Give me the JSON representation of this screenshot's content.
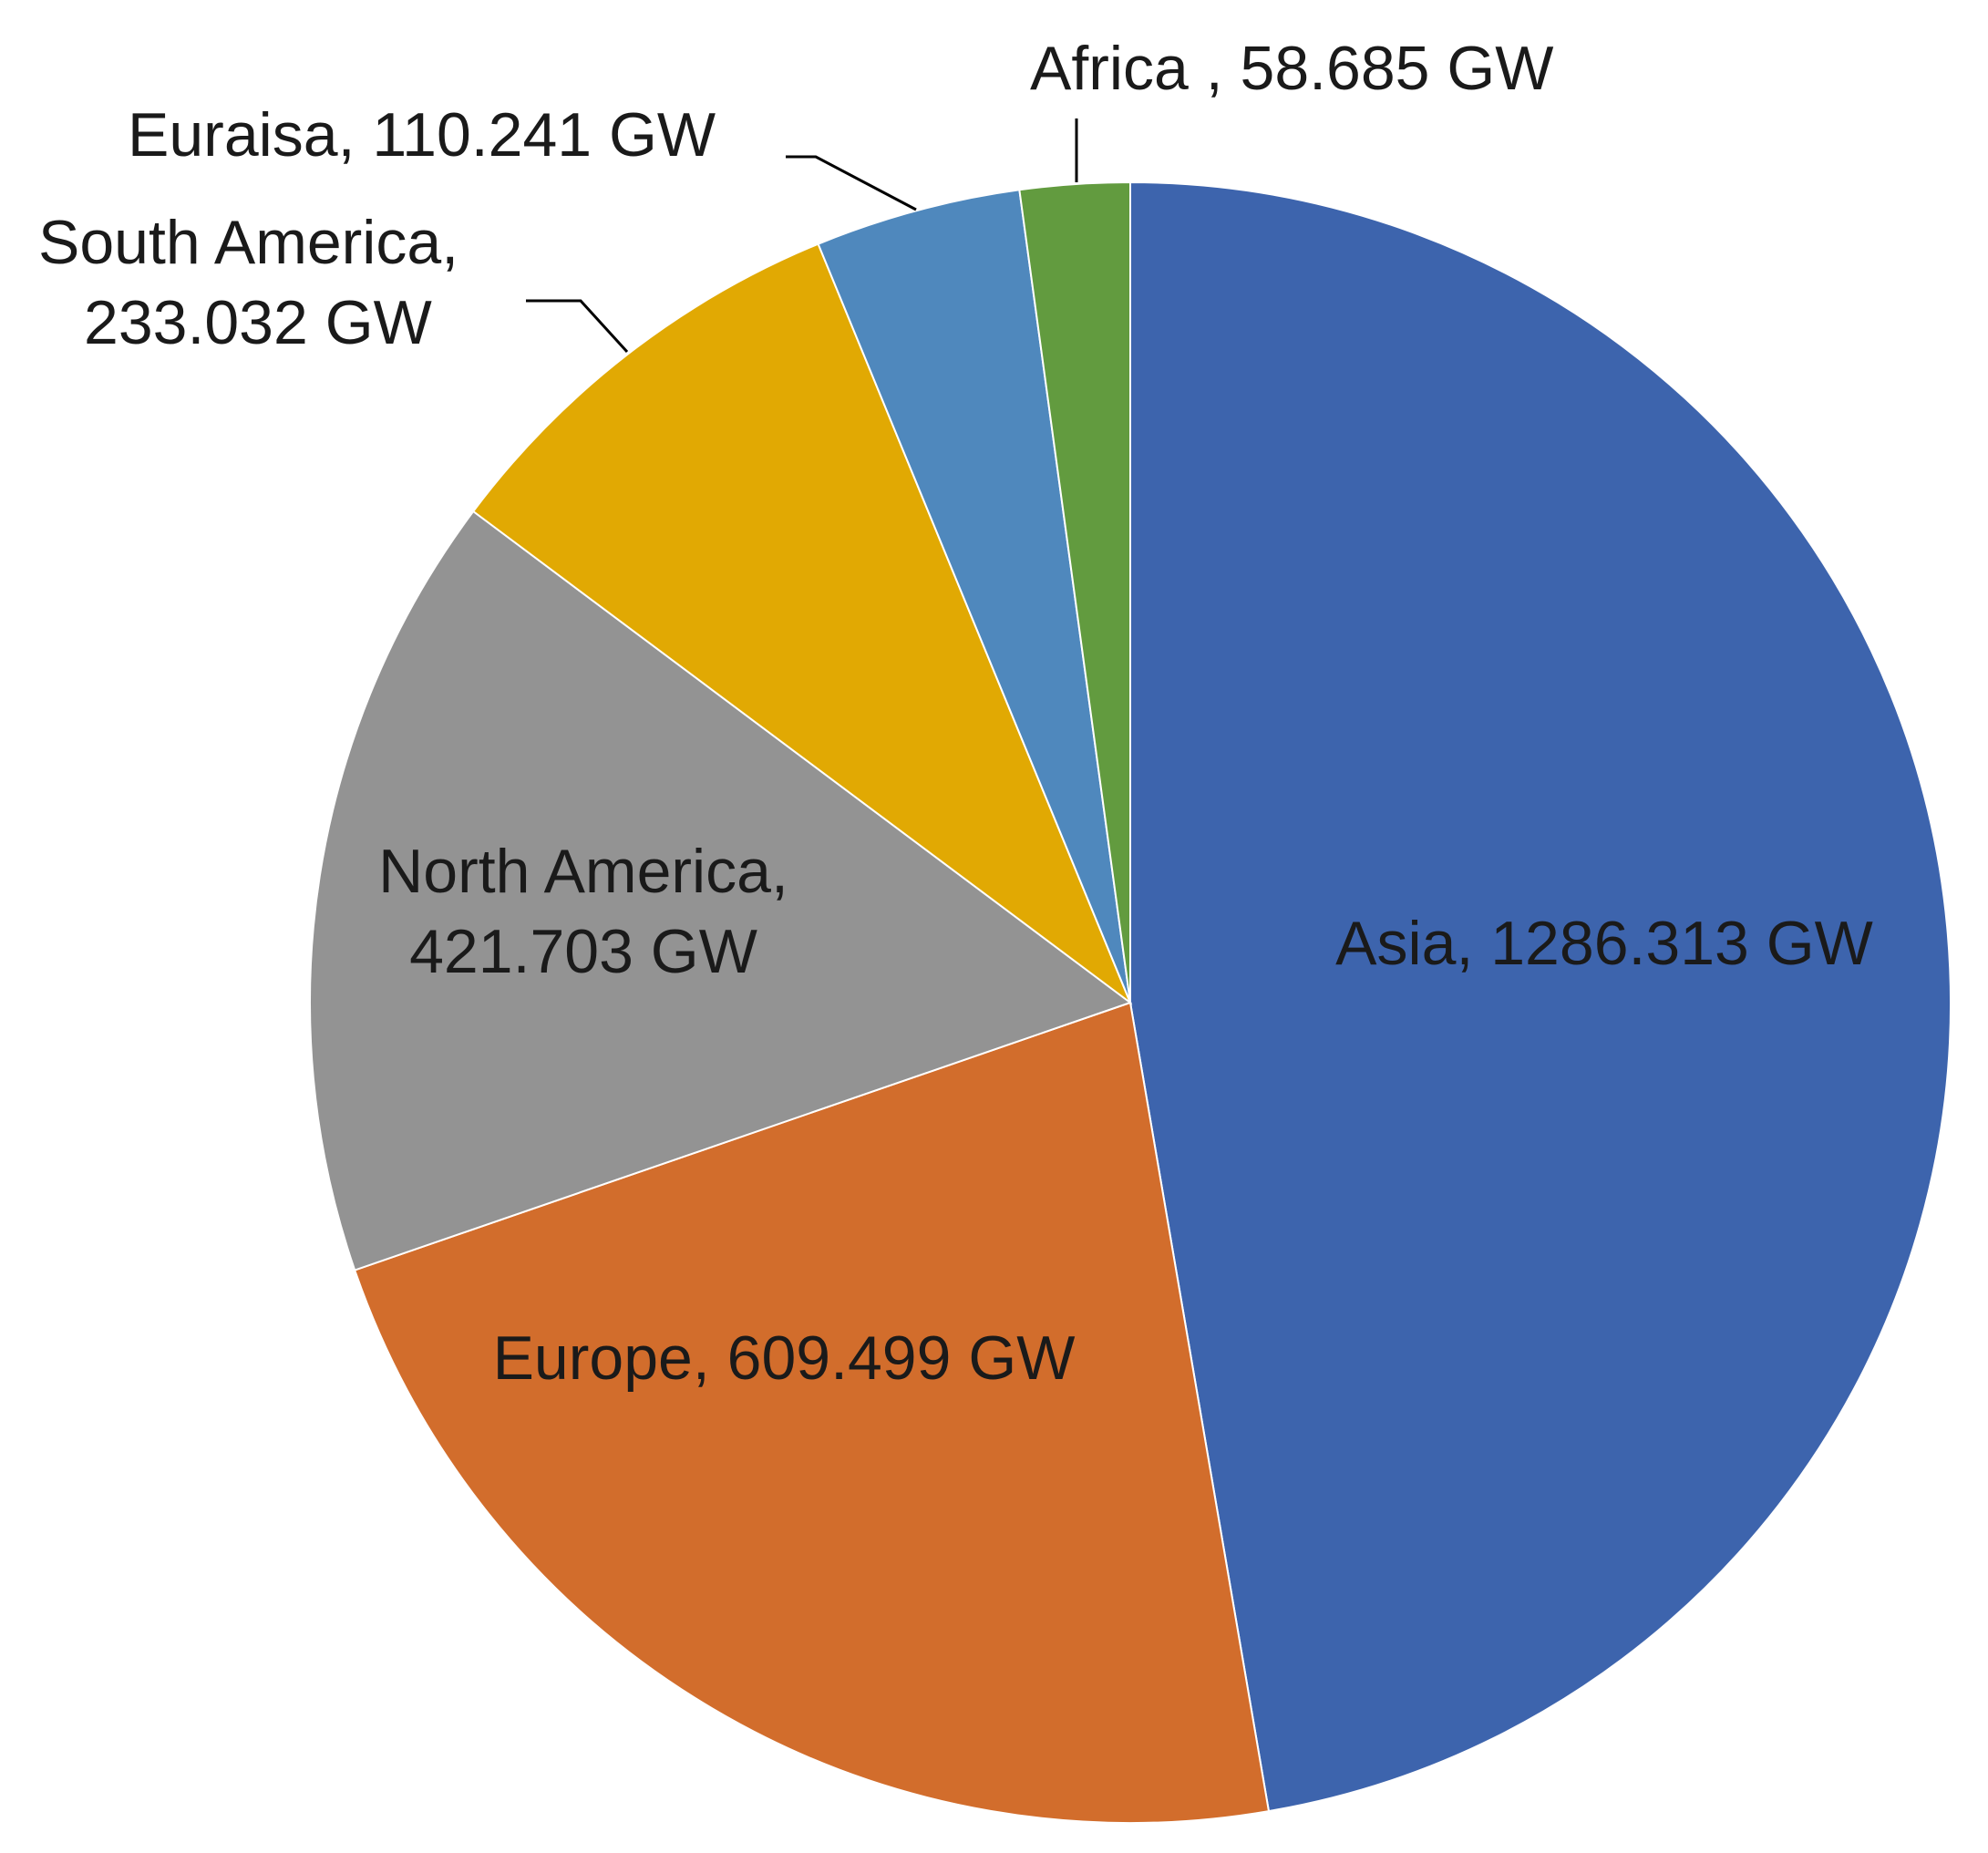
{
  "chart_data": {
    "type": "pie",
    "title": "",
    "unit": "GW",
    "slices": [
      {
        "name": "Asia",
        "value": 1286.313,
        "color": "#3d64ad",
        "label_lines": [
          "Asia, 1286.313 GW"
        ]
      },
      {
        "name": "Europe",
        "value": 609.499,
        "color": "#d26d2c",
        "label_lines": [
          "Europe, 609.499 GW"
        ]
      },
      {
        "name": "North America",
        "value": 421.703,
        "color": "#939393",
        "label_lines": [
          "North America,",
          "421.703 GW"
        ]
      },
      {
        "name": "South America",
        "value": 233.032,
        "color": "#e1a903",
        "label_lines": [
          "South America,",
          "233.032 GW"
        ]
      },
      {
        "name": "Euraisa",
        "value": 110.241,
        "color": "#4f88bd",
        "label_lines": [
          "Euraisa, 110.241 GW"
        ]
      },
      {
        "name": "Africa",
        "value": 58.685,
        "color": "#629b3f",
        "label_lines": [
          "Africa , 58.685 GW"
        ]
      }
    ],
    "start_angle": "12 o'clock",
    "direction": "clockwise",
    "legend": "none",
    "data_labels": true
  }
}
